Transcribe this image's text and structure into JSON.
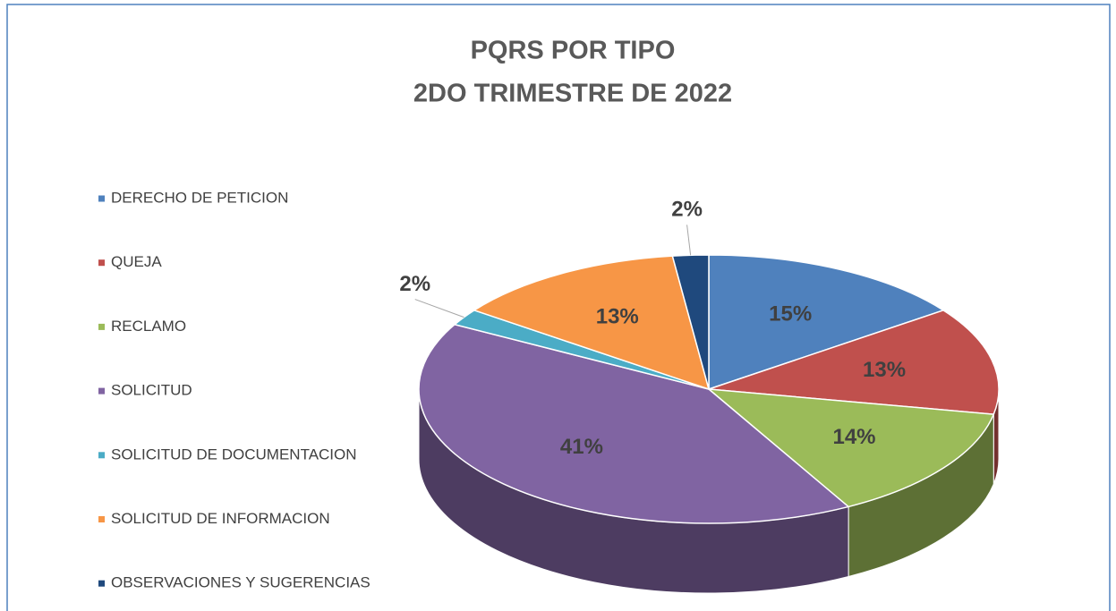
{
  "chart_data": {
    "type": "pie",
    "title": "PQRS POR TIPO",
    "subtitle": "2DO TRIMESTRE DE 2022",
    "categories": [
      "DERECHO DE PETICION",
      "QUEJA",
      "RECLAMO",
      "SOLICITUD",
      "SOLICITUD DE DOCUMENTACION",
      "SOLICITUD DE INFORMACION",
      "OBSERVACIONES Y SUGERENCIAS"
    ],
    "values": [
      15,
      13,
      14,
      41,
      2,
      13,
      2
    ],
    "value_labels": [
      "15%",
      "13%",
      "14%",
      "41%",
      "2%",
      "13%",
      "2%"
    ],
    "colors": [
      "#4f81bd",
      "#c0504d",
      "#9bbb59",
      "#8064a2",
      "#4bacc6",
      "#f79646",
      "#1f497d"
    ],
    "legend": "left"
  }
}
